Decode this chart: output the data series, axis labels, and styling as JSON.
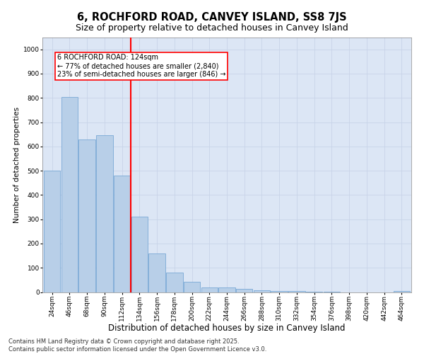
{
  "title": "6, ROCHFORD ROAD, CANVEY ISLAND, SS8 7JS",
  "subtitle": "Size of property relative to detached houses in Canvey Island",
  "xlabel": "Distribution of detached houses by size in Canvey Island",
  "ylabel": "Number of detached properties",
  "categories": [
    "24sqm",
    "46sqm",
    "68sqm",
    "90sqm",
    "112sqm",
    "134sqm",
    "156sqm",
    "178sqm",
    "200sqm",
    "222sqm",
    "244sqm",
    "266sqm",
    "288sqm",
    "310sqm",
    "332sqm",
    "354sqm",
    "376sqm",
    "398sqm",
    "420sqm",
    "442sqm",
    "464sqm"
  ],
  "values": [
    500,
    805,
    630,
    645,
    480,
    310,
    160,
    80,
    42,
    20,
    20,
    12,
    8,
    5,
    3,
    2,
    1,
    0,
    0,
    0,
    3
  ],
  "bar_color": "#b8cfe8",
  "bar_edge_color": "#6a9fd0",
  "vline_color": "red",
  "annotation_title": "6 ROCHFORD ROAD: 124sqm",
  "annotation_line1": "← 77% of detached houses are smaller (2,840)",
  "annotation_line2": "23% of semi-detached houses are larger (846) →",
  "annotation_box_edgecolor": "red",
  "annotation_bg": "white",
  "ylim": [
    0,
    1050
  ],
  "yticks": [
    0,
    100,
    200,
    300,
    400,
    500,
    600,
    700,
    800,
    900,
    1000
  ],
  "grid_color": "#c8d4e8",
  "background_color": "#dce6f5",
  "footer_line1": "Contains HM Land Registry data © Crown copyright and database right 2025.",
  "footer_line2": "Contains public sector information licensed under the Open Government Licence v3.0.",
  "title_fontsize": 10.5,
  "subtitle_fontsize": 9,
  "xlabel_fontsize": 8.5,
  "ylabel_fontsize": 7.5,
  "tick_fontsize": 6.5,
  "footer_fontsize": 6,
  "ann_fontsize": 7
}
